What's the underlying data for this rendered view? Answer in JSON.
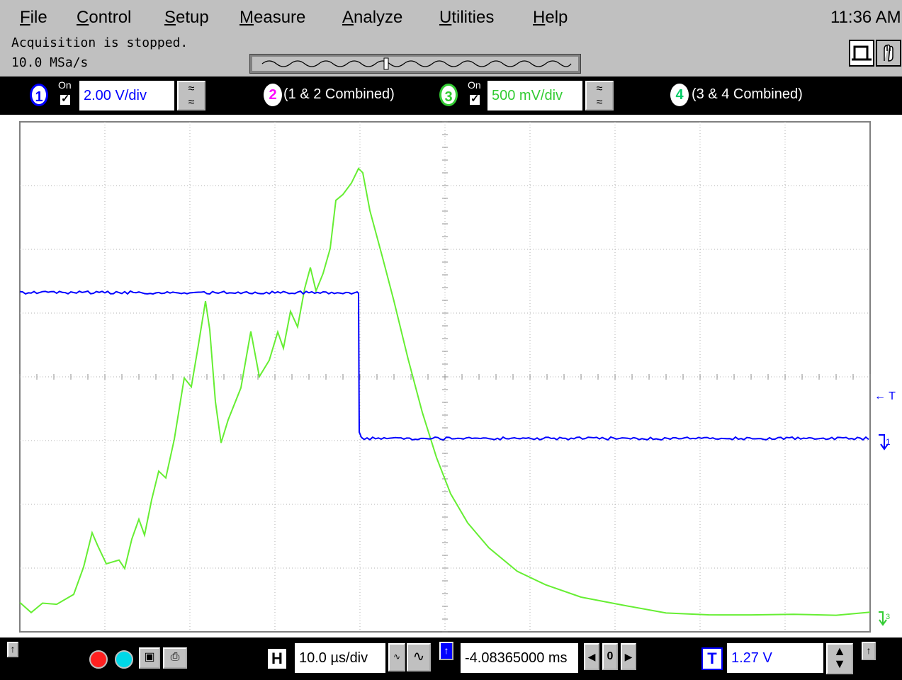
{
  "menu": {
    "items": [
      "File",
      "Control",
      "Setup",
      "Measure",
      "Analyze",
      "Utilities",
      "Help"
    ],
    "mnemonics": [
      "F",
      "C",
      "S",
      "M",
      "A",
      "U",
      "H"
    ],
    "rest": [
      "ile",
      "ontrol",
      "etup",
      "easure",
      "nalyze",
      "tilities",
      "elp"
    ],
    "clock": "11:36 AM"
  },
  "status": {
    "line1": "Acquisition is stopped.",
    "line2": "10.0 MSa/s"
  },
  "channels": {
    "ch1": {
      "number": "1",
      "on_label": "On",
      "scale": "2.00 V/div",
      "color": "#0000ff"
    },
    "ch2": {
      "number": "2",
      "label": "(1 & 2 Combined)",
      "color": "#ff00ff"
    },
    "ch3": {
      "number": "3",
      "on_label": "On",
      "scale": "500 mV/div",
      "color": "#33cc33"
    },
    "ch4": {
      "number": "4",
      "label": "(3 & 4 Combined)",
      "color": "#00cc66"
    }
  },
  "markers": {
    "trigger_label": "← T",
    "ch1_marker": "1",
    "ch3_marker": "3"
  },
  "bottom": {
    "horizontal_label": "H",
    "timebase": "10.0 µs/div",
    "delay": "-4.08365000 ms",
    "delay_zero": "0",
    "trigger_label": "T",
    "trigger_level": "1.27 V"
  },
  "colors": {
    "ch1_trace": "#0000ff",
    "ch3_trace": "#66ee33",
    "grid": "#b0b0b0"
  },
  "icons": [
    "record-icon",
    "run-icon",
    "print-screen-icon",
    "printer-icon",
    "pointer-icon",
    "hand-icon"
  ]
}
